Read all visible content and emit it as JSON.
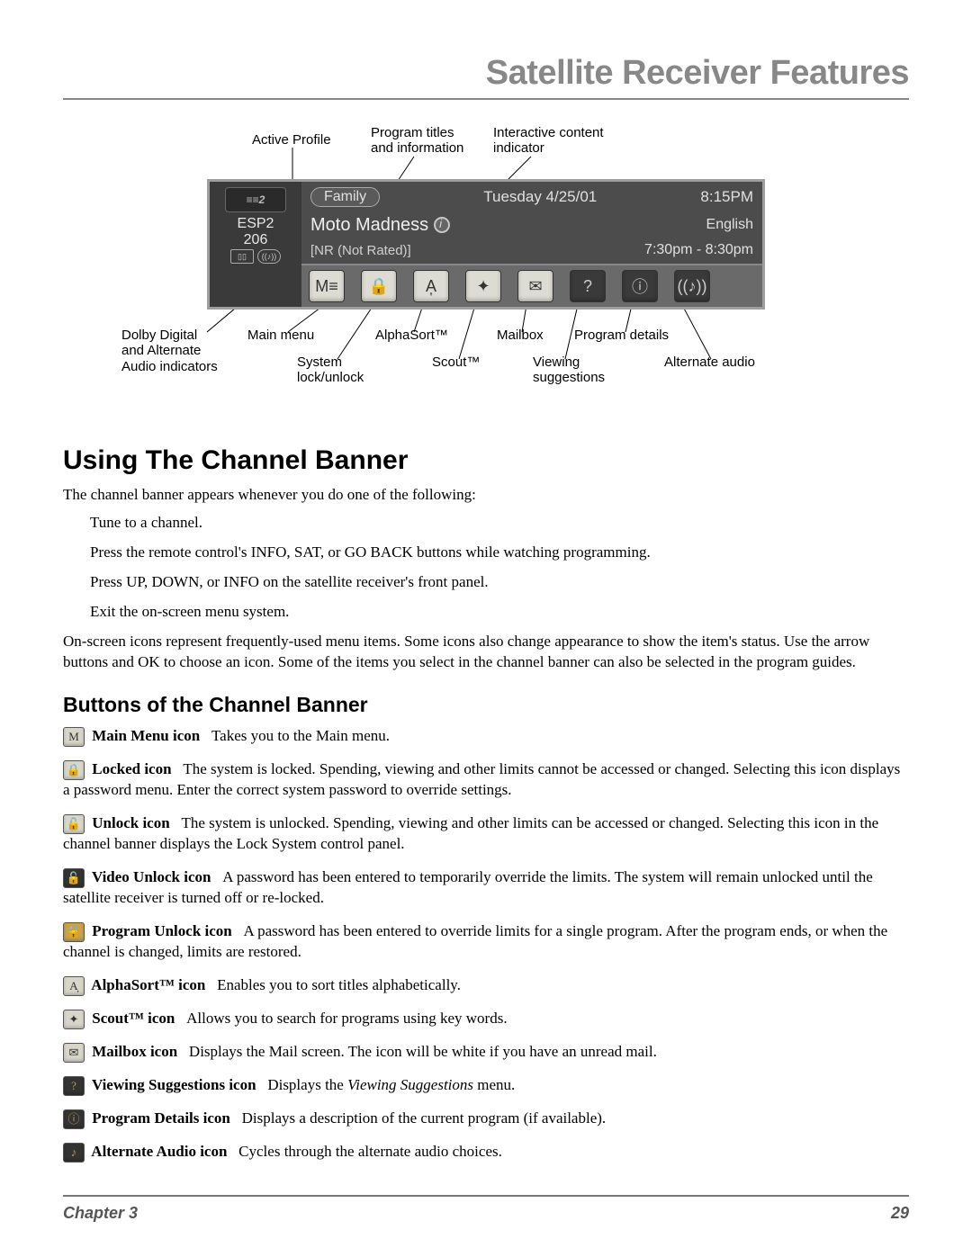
{
  "page": {
    "title": "Satellite Receiver Features",
    "chapter_label": "Chapter 3",
    "page_number": "29"
  },
  "diagram": {
    "callouts_top": {
      "active_profile": "Active Profile",
      "program_titles_l1": "Program titles",
      "program_titles_l2": "and information",
      "interactive_l1": "Interactive content",
      "interactive_l2": "indicator"
    },
    "callouts_bottom": {
      "dolby_l1": "Dolby Digital",
      "dolby_l2": "and Alternate",
      "dolby_l3": "Audio indicators",
      "main_menu": "Main menu",
      "system_l1": "System",
      "system_l2": "lock/unlock",
      "alphasort": "AlphaSort™",
      "scout": "Scout™",
      "mailbox": "Mailbox",
      "viewing_l1": "Viewing",
      "viewing_l2": "suggestions",
      "program_details": "Program details",
      "alt_audio": "Alternate audio"
    },
    "banner": {
      "channel_name": "ESP2",
      "channel_num": "206",
      "profile": "Family",
      "date": "Tuesday 4/25/01",
      "time": "8:15PM",
      "program_title": "Moto Madness",
      "language": "English",
      "rating": "[NR (Not Rated)]",
      "timeslot": "7:30pm - 8:30pm"
    }
  },
  "section1": {
    "heading": "Using The Channel Banner",
    "intro": "The channel banner appears whenever you do one of the following:",
    "bullets": [
      "Tune to a channel.",
      "Press the remote control's INFO, SAT, or GO BACK buttons while watching programming.",
      "Press UP, DOWN, or INFO on the satellite receiver's front panel.",
      "Exit the on-screen menu system."
    ],
    "para": "On-screen icons represent frequently-used menu items. Some icons also change appearance to show the item's status. Use the arrow buttons and OK to choose an icon. Some of the items you select in the channel banner can also be selected in the program guides."
  },
  "section2": {
    "heading": "Buttons of the Channel Banner",
    "items": [
      {
        "icon": "M",
        "icon_class": "",
        "name": "Main Menu icon",
        "desc": "Takes you to the Main menu."
      },
      {
        "icon": "🔒",
        "icon_class": "",
        "name": "Locked icon",
        "desc": "The system is locked. Spending, viewing and other limits cannot be accessed or changed. Selecting this icon displays a password menu. Enter the correct system password to override settings."
      },
      {
        "icon": "🔓",
        "icon_class": "",
        "name": "Unlock icon",
        "desc": "The system is unlocked. Spending, viewing and other limits can be accessed or changed. Selecting this icon in the channel banner displays the Lock System control panel."
      },
      {
        "icon": "🔓",
        "icon_class": "dark",
        "name": "Video Unlock icon",
        "desc": "A password has been entered to temporarily override the limits.  The system will remain unlocked until the satellite receiver is turned off or re-locked."
      },
      {
        "icon": "🔓",
        "icon_class": "gold",
        "name": "Program Unlock icon",
        "desc": "A password has been entered to override limits for a single program. After the program ends, or when the channel is changed, limits are restored."
      },
      {
        "icon": "A͎",
        "icon_class": "",
        "name": "AlphaSort™ icon",
        "desc": "Enables you to sort titles alphabetically."
      },
      {
        "icon": "✦",
        "icon_class": "",
        "name": "Scout™ icon",
        "desc": "Allows you to search for programs using key words."
      },
      {
        "icon": "✉",
        "icon_class": "",
        "name": "Mailbox icon",
        "desc": "Displays the Mail screen. The icon will be white if you have an unread mail."
      },
      {
        "icon": "?",
        "icon_class": "dark",
        "name": "Viewing Suggestions icon",
        "desc": "Displays the Viewing Suggestions menu.",
        "italic": "Viewing Suggestions"
      },
      {
        "icon": "ⓘ",
        "icon_class": "dark",
        "name": "Program Details icon",
        "desc": "Displays a description of the current program (if available)."
      },
      {
        "icon": "♪",
        "icon_class": "dark",
        "name": "Alternate Audio icon",
        "desc": "Cycles through the alternate audio choices."
      }
    ]
  }
}
